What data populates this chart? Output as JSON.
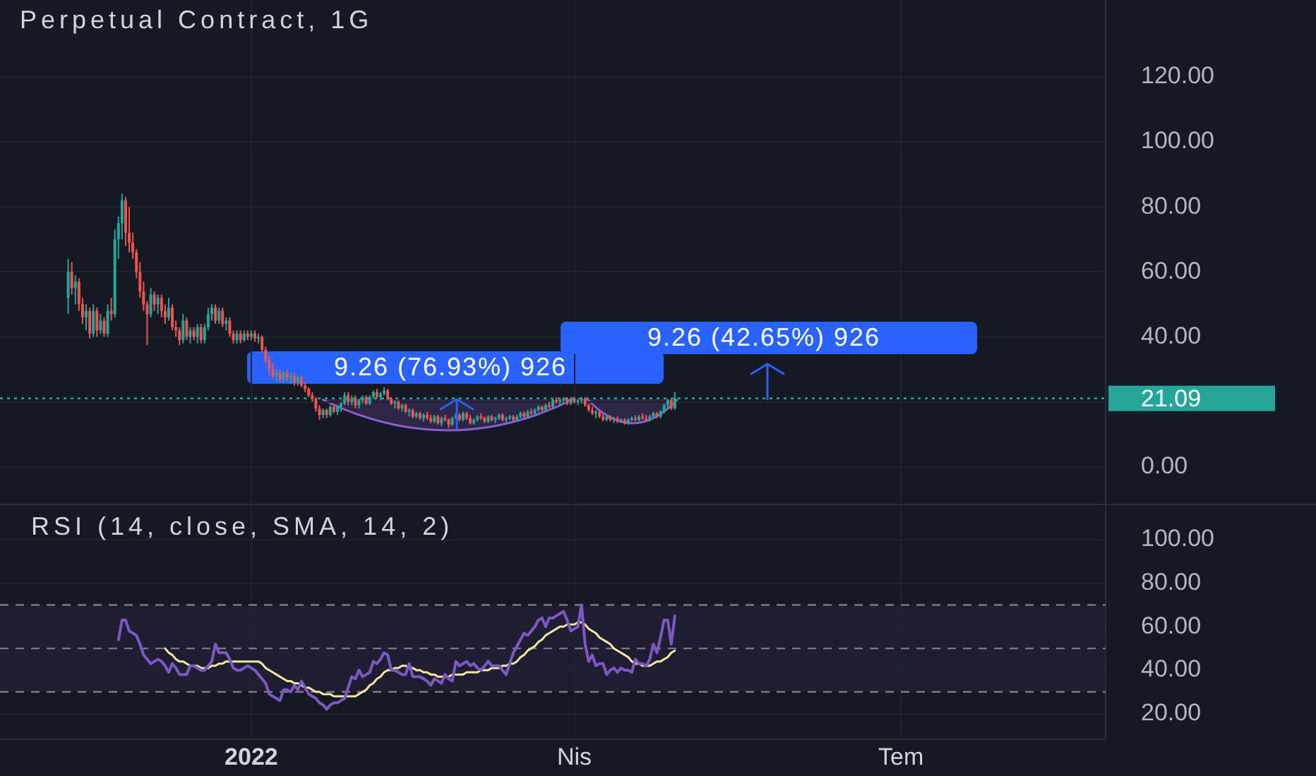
{
  "chart_data": [
    {
      "type": "candlestick",
      "title": "Perpetual Contract, 1G",
      "categories": [
        null,
        null,
        null,
        null,
        null,
        null,
        null,
        null,
        null,
        null,
        null,
        null,
        null,
        null,
        null,
        null,
        null,
        null,
        null,
        null,
        null,
        null,
        null,
        null,
        null,
        null,
        null,
        null,
        null,
        null,
        null,
        null,
        null,
        null,
        null,
        null,
        null,
        null,
        null,
        null,
        null,
        null,
        null,
        null,
        null,
        null,
        null,
        null,
        null,
        null,
        null,
        null,
        null,
        null,
        null,
        null,
        null,
        null,
        null,
        null,
        null,
        null,
        null,
        null,
        null,
        null,
        null,
        null,
        null,
        null,
        null,
        null,
        null,
        null,
        null,
        null,
        null,
        null,
        null,
        null,
        null,
        null,
        null,
        null,
        null,
        null,
        null,
        null,
        null,
        null,
        null,
        null,
        null,
        null,
        null,
        null,
        null,
        null,
        null,
        null,
        null,
        null,
        null,
        null,
        null,
        null,
        null,
        null,
        null,
        null,
        null,
        null,
        null,
        null,
        null,
        null,
        null,
        null,
        null,
        null,
        null,
        null,
        null,
        null,
        null,
        null,
        null,
        null,
        null,
        null,
        null,
        null,
        null,
        null,
        null,
        null,
        null,
        null,
        null,
        null,
        null,
        null,
        null,
        null,
        null,
        null,
        null,
        null,
        null,
        null,
        null,
        null,
        null,
        null,
        null,
        null,
        null,
        null,
        null,
        null,
        null,
        null,
        null,
        null,
        null,
        null,
        null,
        null,
        null,
        null,
        null,
        null,
        null,
        null,
        null,
        null,
        null,
        null,
        null,
        null,
        null,
        null,
        null,
        null,
        null,
        null,
        null,
        null,
        null,
        null,
        null,
        null,
        null,
        null,
        null,
        null,
        null,
        null,
        null,
        null,
        null,
        null,
        null,
        null,
        null,
        null,
        null,
        null,
        null,
        null,
        null,
        null,
        null,
        null,
        null,
        null,
        null,
        null,
        null,
        null,
        null,
        null,
        null,
        null,
        null,
        null,
        null,
        null,
        null,
        null,
        null,
        null,
        null,
        null,
        null,
        null,
        null,
        null,
        null,
        null,
        null,
        null,
        null,
        null,
        null,
        null,
        null,
        null,
        null,
        null,
        null,
        null,
        null,
        null,
        null,
        null,
        null,
        null,
        null,
        null,
        null,
        null,
        null,
        null,
        null,
        null,
        null,
        null,
        null,
        null,
        null,
        null,
        null,
        null,
        null,
        null,
        null,
        null,
        null,
        null,
        null,
        null,
        null,
        null,
        null,
        null,
        null,
        null,
        null,
        null,
        null,
        null,
        null,
        null,
        null,
        null,
        null,
        null,
        null,
        null,
        null,
        null,
        null,
        null,
        null,
        null,
        null,
        null,
        null
      ],
      "ohlc": [
        null,
        null,
        null,
        null,
        null,
        null,
        null,
        null,
        null,
        null,
        null,
        null,
        null,
        null,
        null,
        null,
        null,
        null,
        null,
        [
          52,
          64,
          47,
          60
        ],
        [
          60,
          63,
          53,
          55
        ],
        [
          55,
          59,
          50,
          57
        ],
        [
          57,
          58,
          48,
          50
        ],
        [
          50,
          52,
          44,
          46
        ],
        [
          46,
          50,
          42,
          48
        ],
        [
          48,
          49,
          39.5,
          41
        ],
        [
          41,
          50,
          40,
          48
        ],
        [
          48,
          49,
          40,
          42
        ],
        [
          42,
          47,
          41,
          45
        ],
        [
          45,
          46,
          40,
          41
        ],
        [
          41,
          50,
          40,
          48
        ],
        [
          48,
          52,
          45,
          47
        ],
        [
          47,
          73,
          46,
          70
        ],
        [
          70,
          77,
          64,
          75
        ],
        [
          75,
          84,
          70,
          82
        ],
        [
          82,
          83,
          68,
          72
        ],
        [
          72,
          80,
          66,
          69
        ],
        [
          69,
          72,
          64,
          66
        ],
        [
          66,
          67,
          58,
          60
        ],
        [
          60,
          63,
          52,
          54
        ],
        [
          54,
          57,
          48,
          50
        ],
        [
          50,
          51,
          37.5,
          47
        ],
        [
          47,
          55,
          46,
          53
        ],
        [
          53,
          54,
          48,
          50
        ],
        [
          50,
          53,
          47,
          52
        ],
        [
          52,
          53,
          46,
          48
        ],
        [
          48,
          50,
          44,
          46
        ],
        [
          46,
          52,
          45,
          49
        ],
        [
          49,
          50,
          42,
          43
        ],
        [
          43,
          45,
          40,
          42
        ],
        [
          42,
          43,
          37.5,
          39
        ],
        [
          39,
          47,
          38,
          45
        ],
        [
          45,
          46,
          39,
          40
        ],
        [
          40,
          43,
          38,
          42
        ],
        [
          42,
          43,
          39,
          40
        ],
        [
          40,
          44,
          38,
          43
        ],
        [
          43,
          44,
          38,
          39
        ],
        [
          39,
          44,
          38,
          43
        ],
        [
          43,
          49,
          42,
          47
        ],
        [
          47,
          50,
          45,
          49
        ],
        [
          49,
          50,
          44,
          45
        ],
        [
          45,
          49,
          44,
          48
        ],
        [
          48,
          49,
          43,
          44
        ],
        [
          44,
          46,
          42,
          45
        ],
        [
          45,
          46,
          40,
          41
        ],
        [
          41,
          42,
          38,
          39
        ],
        [
          39,
          42,
          38,
          41
        ],
        [
          41,
          42,
          38,
          39
        ],
        [
          39,
          42,
          38.5,
          41
        ],
        [
          41,
          42,
          39,
          40
        ],
        [
          40,
          42,
          39,
          41
        ],
        [
          41,
          42,
          38.5,
          39.5
        ],
        [
          39.5,
          41,
          38,
          40
        ],
        [
          40,
          40.5,
          35,
          36
        ],
        [
          36,
          37,
          32,
          33
        ],
        [
          33,
          34,
          28,
          30
        ],
        [
          30,
          32,
          27,
          28
        ],
        [
          28,
          30,
          26,
          29
        ],
        [
          29,
          30,
          26,
          27
        ],
        [
          27,
          29.5,
          26,
          29
        ],
        [
          29,
          30,
          26.5,
          27.5
        ],
        [
          27.5,
          29,
          25.5,
          28
        ],
        [
          28,
          29,
          25,
          26
        ],
        [
          26,
          28,
          25,
          27.5
        ],
        [
          27.5,
          28,
          24.5,
          25
        ],
        [
          25,
          26,
          23,
          24
        ],
        [
          24,
          24.5,
          21.5,
          22
        ],
        [
          22,
          23,
          20,
          21
        ],
        [
          21,
          21.5,
          17,
          18
        ],
        [
          18,
          19,
          14.5,
          16
        ],
        [
          16,
          18,
          15,
          17.5
        ],
        [
          17.5,
          18,
          15,
          16
        ],
        [
          16,
          19,
          15.5,
          18.5
        ],
        [
          18.5,
          19.5,
          16.5,
          17
        ],
        [
          17,
          19,
          16,
          18.5
        ],
        [
          18.5,
          20,
          17,
          19.5
        ],
        [
          19.5,
          23,
          19,
          22
        ],
        [
          22,
          23,
          19,
          20
        ],
        [
          20,
          22,
          19,
          21
        ],
        [
          21,
          22,
          18,
          19
        ],
        [
          19,
          21,
          18,
          20.5
        ],
        [
          20.5,
          22,
          19.5,
          21.5
        ],
        [
          21.5,
          22,
          19,
          19.5
        ],
        [
          19.5,
          22,
          19,
          21.5
        ],
        [
          21.5,
          23.5,
          21,
          23
        ],
        [
          23,
          24,
          21,
          21.5
        ],
        [
          21.5,
          23,
          20.5,
          22.5
        ],
        [
          22.5,
          24.5,
          22,
          23.5
        ],
        [
          23.5,
          24,
          20.5,
          21
        ],
        [
          21,
          21.5,
          19,
          19.5
        ],
        [
          19.5,
          20.5,
          18,
          20
        ],
        [
          20,
          20.5,
          17.5,
          18
        ],
        [
          18,
          19.5,
          17,
          19
        ],
        [
          19,
          19.5,
          16.5,
          17
        ],
        [
          17,
          18,
          15.5,
          17.5
        ],
        [
          17.5,
          18,
          15,
          15.5
        ],
        [
          15.5,
          17,
          15,
          16.5
        ],
        [
          16.5,
          17,
          14.5,
          15
        ],
        [
          15,
          16.5,
          14,
          16
        ],
        [
          16,
          17,
          14.5,
          15
        ],
        [
          15,
          16,
          13.5,
          14
        ],
        [
          14,
          16,
          13.5,
          15.5
        ],
        [
          15.5,
          16,
          13,
          13.5
        ],
        [
          13.5,
          15.5,
          12.5,
          15
        ],
        [
          15,
          16,
          14,
          14.5
        ],
        [
          14.5,
          15,
          12,
          13
        ],
        [
          13,
          15.5,
          12.5,
          15
        ],
        [
          15,
          16.5,
          14.5,
          16
        ],
        [
          16,
          16.5,
          14,
          14.5
        ],
        [
          14.5,
          17,
          14,
          16.5
        ],
        [
          16.5,
          17,
          14.5,
          15
        ],
        [
          15,
          16,
          13,
          13.5
        ],
        [
          13.5,
          15,
          13,
          14.5
        ],
        [
          14.5,
          16,
          14,
          15.5
        ],
        [
          15.5,
          16.5,
          14.5,
          15
        ],
        [
          15,
          15.5,
          13.5,
          14
        ],
        [
          14,
          16,
          13.5,
          15.5
        ],
        [
          15.5,
          16,
          14,
          14.5
        ],
        [
          14.5,
          15.5,
          13.5,
          15
        ],
        [
          15,
          16.5,
          14.5,
          16
        ],
        [
          16,
          16.5,
          14,
          14.5
        ],
        [
          14.5,
          15.5,
          13.5,
          15
        ],
        [
          15,
          16,
          14.5,
          15.5
        ],
        [
          15.5,
          16,
          14,
          14.5
        ],
        [
          14.5,
          16,
          14,
          15.5
        ],
        [
          15.5,
          17,
          15,
          16.5
        ],
        [
          16.5,
          17,
          15,
          15.5
        ],
        [
          15.5,
          17.5,
          15,
          17
        ],
        [
          17,
          18,
          16,
          16.5
        ],
        [
          16.5,
          18,
          16,
          17.5
        ],
        [
          17.5,
          19,
          17,
          18.5
        ],
        [
          18.5,
          19,
          17,
          17.5
        ],
        [
          17.5,
          19.5,
          17,
          19
        ],
        [
          19,
          20,
          18,
          18.5
        ],
        [
          18.5,
          21,
          18,
          20.5
        ],
        [
          20.5,
          21.5,
          19.5,
          20
        ],
        [
          20,
          21,
          19,
          20.5
        ],
        [
          20.5,
          21.5,
          19.5,
          21
        ],
        [
          21,
          21.5,
          19,
          19.5
        ],
        [
          19.5,
          21.5,
          19,
          21
        ],
        [
          21,
          21.5,
          19.5,
          20
        ],
        [
          20,
          21,
          19,
          20.5
        ],
        [
          20.5,
          21.5,
          19.5,
          21
        ],
        [
          21,
          21.5,
          18.5,
          19
        ],
        [
          19,
          19.5,
          17,
          17.5
        ],
        [
          17.5,
          18.5,
          16,
          16.5
        ],
        [
          16.5,
          17.5,
          15,
          17
        ],
        [
          17,
          17.5,
          15,
          15.5
        ],
        [
          15.5,
          16.5,
          14,
          14.5
        ],
        [
          14.5,
          16,
          14,
          15.5
        ],
        [
          15.5,
          16,
          14,
          14.5
        ],
        [
          14.5,
          15.5,
          13.5,
          15
        ],
        [
          15,
          15.5,
          13.5,
          14
        ],
        [
          14,
          15,
          13.5,
          14.5
        ],
        [
          14.5,
          15,
          13,
          13.5
        ],
        [
          13.5,
          15,
          13,
          14.5
        ],
        [
          14.5,
          15.5,
          14,
          15
        ],
        [
          15,
          16,
          14,
          14.5
        ],
        [
          14.5,
          16,
          14,
          15.5
        ],
        [
          15.5,
          16.5,
          14.5,
          15
        ],
        [
          15,
          16,
          14,
          14.5
        ],
        [
          14.5,
          16,
          14,
          15.5
        ],
        [
          15.5,
          17,
          15,
          16.5
        ],
        [
          16.5,
          17,
          15,
          15.5
        ],
        [
          15.5,
          17.5,
          15,
          17
        ],
        [
          17,
          19.5,
          16.5,
          19
        ],
        [
          19,
          21,
          18,
          20.5
        ],
        [
          20.5,
          21,
          17.5,
          18
        ],
        [
          18,
          23,
          17.5,
          21.09
        ],
        null,
        null,
        null,
        null,
        null,
        null,
        null,
        null,
        null,
        null,
        null,
        null,
        null,
        null,
        null,
        null,
        null,
        null,
        null,
        null,
        null,
        null,
        null,
        null,
        null,
        null,
        null,
        null,
        null,
        null,
        null,
        null,
        null,
        null,
        null,
        null,
        null,
        null,
        null,
        null,
        null,
        null,
        null,
        null,
        null,
        null,
        null,
        null,
        null,
        null,
        null,
        null,
        null,
        null,
        null,
        null,
        null,
        null,
        null,
        null,
        null,
        null,
        null,
        null,
        null,
        null,
        null,
        null,
        null,
        null,
        null,
        null,
        null,
        null,
        null,
        null,
        null,
        null,
        null,
        null,
        null,
        null,
        null,
        null,
        null,
        null,
        null,
        null,
        null,
        null,
        null,
        null,
        null,
        null,
        null,
        null,
        null,
        null,
        null,
        null,
        null,
        null,
        null,
        null,
        null,
        null,
        null,
        null,
        null,
        null,
        null,
        null,
        null,
        null,
        null,
        null,
        null,
        null,
        null,
        null
      ],
      "ylim": [
        -11.3,
        143.6
      ],
      "yticks": [
        {
          "value": 0,
          "label": "0.00"
        },
        {
          "value": 20,
          "label": null
        },
        {
          "value": 40,
          "label": "40.00"
        },
        {
          "value": 60,
          "label": "60.00"
        },
        {
          "value": 80,
          "label": "80.00"
        },
        {
          "value": 100,
          "label": "100.00"
        },
        {
          "value": 120,
          "label": "120.00"
        }
      ],
      "tick_labels": "y",
      "grid": true,
      "ref_lines": [
        {
          "axis": "y",
          "value": 21.09,
          "label": "21.09",
          "color": "#26a69a",
          "line_style": "dotted"
        }
      ],
      "annotations": [
        {
          "text": "9.26 (76.93%) 926",
          "y": 21.3
        },
        "9.26 (42.65%) 926"
      ]
    },
    {
      "type": "line",
      "title": "RSI (14, close, SMA, 14, 2)",
      "categories": [
        null,
        null,
        null,
        null,
        null,
        null,
        null,
        null,
        null,
        null,
        null,
        null,
        null,
        null,
        null,
        null,
        null,
        null,
        null,
        null,
        null,
        null,
        null,
        null,
        null,
        null,
        null,
        null,
        null,
        null,
        null,
        null,
        null,
        null,
        null,
        null,
        null,
        null,
        null,
        null,
        null,
        null,
        null,
        null,
        null,
        null,
        null,
        null,
        null,
        null,
        null,
        null,
        null,
        null,
        null,
        null,
        null,
        null,
        null,
        null,
        null,
        null,
        null,
        null,
        null,
        null,
        null,
        null,
        null,
        null,
        "2022",
        null,
        null,
        null,
        null,
        null,
        null,
        null,
        null,
        null,
        null,
        null,
        null,
        null,
        null,
        null,
        null,
        null,
        null,
        null,
        null,
        null,
        null,
        null,
        null,
        null,
        null,
        null,
        null,
        null,
        null,
        null,
        null,
        null,
        null,
        null,
        null,
        null,
        null,
        null,
        null,
        null,
        null,
        null,
        null,
        null,
        null,
        null,
        null,
        null,
        null,
        null,
        null,
        null,
        null,
        null,
        null,
        null,
        null,
        null,
        null,
        null,
        null,
        null,
        null,
        null,
        null,
        null,
        null,
        null,
        null,
        null,
        null,
        null,
        null,
        null,
        null,
        null,
        null,
        null,
        null,
        null,
        null,
        null,
        null,
        null,
        null,
        null,
        null,
        null,
        "Nis",
        null,
        null,
        null,
        null,
        null,
        null,
        null,
        null,
        null,
        null,
        null,
        null,
        null,
        null,
        null,
        null,
        null,
        null,
        null,
        null,
        null,
        null,
        null,
        null,
        null,
        null,
        null,
        null,
        null,
        null,
        null,
        null,
        null,
        null,
        null,
        null,
        null,
        null,
        null,
        null,
        null,
        null,
        null,
        null,
        null,
        null,
        null,
        null,
        null,
        null,
        null,
        null,
        null,
        null,
        null,
        null,
        null,
        null,
        null,
        null,
        null,
        null,
        null,
        null,
        null,
        null,
        null,
        null,
        null,
        null,
        null,
        null,
        null,
        null,
        null,
        null,
        null,
        null,
        null,
        null,
        null,
        null,
        null,
        null,
        null,
        null,
        null,
        null,
        null,
        null,
        "Tem",
        null,
        null,
        null,
        null,
        null,
        null,
        null,
        null,
        null,
        null,
        null,
        null,
        null,
        null,
        null,
        null,
        null,
        null,
        null,
        null,
        null,
        null,
        null,
        null,
        null,
        null,
        null,
        null,
        null,
        null,
        null,
        null,
        null,
        null,
        null,
        null,
        null,
        null,
        null,
        null,
        null,
        null,
        null,
        null,
        null,
        null,
        null,
        null,
        null,
        null,
        null,
        null,
        null,
        null,
        null,
        null,
        null
      ],
      "series": [
        {
          "color": "#7e57c2",
          "values": [
            null,
            null,
            null,
            null,
            null,
            null,
            null,
            null,
            null,
            null,
            null,
            null,
            null,
            null,
            null,
            null,
            null,
            null,
            null,
            null,
            null,
            null,
            null,
            null,
            null,
            null,
            null,
            null,
            null,
            null,
            null,
            null,
            null,
            54,
            63,
            63,
            58,
            57,
            56,
            52,
            47,
            45,
            43,
            44,
            45,
            44,
            42,
            39,
            43,
            41,
            38,
            38,
            38,
            42,
            42,
            41,
            40,
            40,
            42,
            44,
            52,
            48,
            48,
            48,
            45,
            41,
            40,
            40,
            41,
            42,
            41,
            40,
            38,
            36,
            34,
            29,
            28,
            27,
            26,
            31,
            31,
            30,
            33,
            31,
            35,
            32,
            29,
            28,
            27,
            25,
            24,
            22,
            24,
            25,
            25,
            26,
            27,
            32,
            37,
            36,
            40,
            37,
            38,
            39,
            44,
            43,
            45,
            48,
            47,
            40,
            40,
            39,
            38,
            38,
            43,
            37,
            37,
            37,
            36,
            35,
            33,
            36,
            35,
            34,
            38,
            36,
            35,
            44,
            42,
            43,
            44,
            42,
            43,
            41,
            40,
            42,
            44,
            42,
            42,
            42,
            40,
            38,
            43,
            48,
            51,
            54,
            57,
            56,
            58,
            60,
            63,
            64,
            60,
            64,
            64,
            65,
            66,
            67,
            63,
            58,
            59,
            60,
            70,
            52,
            44,
            47,
            42,
            43,
            43,
            38,
            40,
            41,
            39,
            41,
            40,
            40,
            39,
            45,
            43,
            43,
            42,
            45,
            52,
            48,
            55,
            63,
            63,
            52,
            65,
            null,
            null,
            null,
            null,
            null,
            null,
            null,
            null,
            null,
            null,
            null,
            null,
            null,
            null,
            null,
            null,
            null,
            null,
            null,
            null,
            null,
            null,
            null,
            null,
            null,
            null,
            null,
            null,
            null,
            null,
            null,
            null,
            null,
            null,
            null,
            null,
            null,
            null,
            null,
            null,
            null,
            null,
            null,
            null,
            null,
            null,
            null,
            null,
            null,
            null,
            null,
            null,
            null,
            null,
            null,
            null,
            null,
            null,
            null,
            null,
            null,
            null,
            null,
            null,
            null,
            null,
            null,
            null,
            null,
            null,
            null,
            null,
            null,
            null,
            null,
            null,
            null,
            null,
            null,
            null,
            null,
            null,
            null,
            null,
            null,
            null,
            null,
            null,
            null,
            null,
            null,
            null,
            null,
            null,
            null,
            null,
            null,
            null,
            null,
            null,
            null,
            null,
            null,
            null,
            null,
            null,
            null,
            null,
            null,
            null,
            null,
            null,
            null,
            null,
            null,
            null,
            null,
            null,
            null,
            null
          ]
        },
        {
          "color": "#f5e6a0",
          "values": [
            null,
            null,
            null,
            null,
            null,
            null,
            null,
            null,
            null,
            null,
            null,
            null,
            null,
            null,
            null,
            null,
            null,
            null,
            null,
            null,
            null,
            null,
            null,
            null,
            null,
            null,
            null,
            null,
            null,
            null,
            null,
            null,
            null,
            null,
            null,
            null,
            null,
            null,
            null,
            null,
            null,
            null,
            null,
            null,
            null,
            null,
            50,
            48,
            47,
            45,
            44,
            44,
            43,
            42,
            42,
            42,
            41,
            41,
            41,
            42,
            42,
            43,
            43,
            44,
            44,
            44,
            44,
            44,
            44,
            44,
            44,
            44,
            44,
            43,
            41,
            40,
            39,
            38,
            37,
            36,
            35,
            35,
            34,
            34,
            33,
            32,
            32,
            31,
            30,
            30,
            29,
            29,
            29,
            28,
            28,
            28,
            28,
            28,
            28,
            28,
            29,
            30,
            31,
            33,
            34,
            36,
            37,
            39,
            40,
            40,
            41,
            41,
            42,
            42,
            41,
            41,
            40,
            40,
            39,
            39,
            38,
            38,
            37,
            37,
            37,
            37,
            38,
            38,
            38,
            38,
            39,
            39,
            39,
            39,
            40,
            40,
            40,
            41,
            41,
            41,
            42,
            42,
            43,
            43,
            44,
            46,
            47,
            49,
            50,
            51,
            53,
            54,
            56,
            57,
            58,
            59,
            60,
            60,
            61,
            61,
            61,
            62,
            62,
            61,
            59,
            58,
            57,
            55,
            54,
            53,
            52,
            50,
            49,
            48,
            47,
            46,
            44,
            43,
            43,
            42,
            42,
            42,
            43,
            44,
            44,
            45,
            46,
            48,
            49,
            null,
            null,
            null,
            null,
            null,
            null,
            null,
            null,
            null,
            null,
            null,
            null,
            null,
            null,
            null,
            null,
            null,
            null,
            null,
            null,
            null,
            null,
            null,
            null,
            null,
            null,
            null,
            null,
            null,
            null,
            null,
            null,
            null,
            null,
            null,
            null,
            null,
            null,
            null,
            null,
            null,
            null,
            null,
            null,
            null,
            null,
            null,
            null,
            null,
            null,
            null,
            null,
            null,
            null,
            null,
            null,
            null,
            null,
            null,
            null,
            null,
            null,
            null,
            null,
            null,
            null,
            null,
            null,
            null,
            null,
            null,
            null,
            null,
            null,
            null,
            null,
            null,
            null,
            null,
            null,
            null,
            null,
            null,
            null,
            null,
            null,
            null,
            null,
            null,
            null,
            null,
            null,
            null,
            null,
            null,
            null,
            null,
            null,
            null,
            null,
            null,
            null,
            null,
            null,
            null,
            null,
            null,
            null,
            null,
            null,
            null,
            null,
            null,
            null,
            null,
            null,
            null,
            null,
            null,
            null
          ]
        }
      ],
      "ylim": [
        8.2,
        115.9
      ],
      "yticks": [
        {
          "value": 20,
          "label": "20.00"
        },
        {
          "value": 40,
          "label": "40.00"
        },
        {
          "value": 60,
          "label": "60.00"
        },
        {
          "value": 80,
          "label": "80.00"
        },
        {
          "value": 100,
          "label": "100.00"
        }
      ],
      "grid": true,
      "marker": "none",
      "ref_lines": [
        {
          "axis": "y",
          "value": 70,
          "color": "#787b86",
          "line_style": "dashed"
        },
        {
          "axis": "y",
          "value": 50,
          "color": "#787b86",
          "line_style": "dashed"
        },
        {
          "axis": "y",
          "value": 30,
          "color": "#787b86",
          "line_style": "dashed"
        }
      ],
      "bands": [
        {
          "axis": "y",
          "from": 30,
          "to": 70,
          "color": "#1e1d32"
        }
      ]
    }
  ]
}
